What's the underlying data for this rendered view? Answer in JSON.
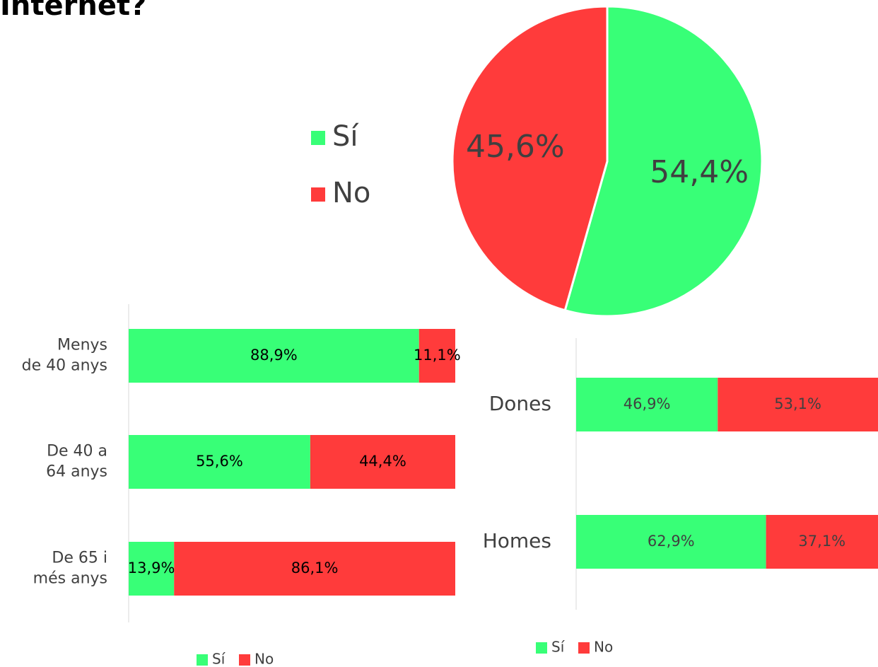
{
  "chart_data": [
    {
      "type": "pie",
      "title": "Internet?",
      "categories": [
        "Sí",
        "No"
      ],
      "values": [
        54.4,
        45.6
      ],
      "value_labels": [
        "54,4%",
        "45,6%"
      ],
      "colors": [
        "#38ff77",
        "#ff3b3b"
      ]
    },
    {
      "type": "stacked_barh",
      "categories": [
        "Menys\nde 40 anys",
        "De 40 a\n64 anys",
        "De 65 i\nmés anys"
      ],
      "xlim": [
        0,
        100
      ],
      "series": [
        {
          "name": "Sí",
          "color": "#38ff77",
          "values": [
            88.9,
            55.6,
            13.9
          ],
          "value_labels": [
            "88,9%",
            "55,6%",
            "13,9%"
          ]
        },
        {
          "name": "No",
          "color": "#ff3b3b",
          "values": [
            11.1,
            44.4,
            86.1
          ],
          "value_labels": [
            "11,1%",
            "44,4%",
            "86,1%"
          ]
        }
      ]
    },
    {
      "type": "stacked_barh",
      "categories": [
        "Dones",
        "Homes"
      ],
      "xlim": [
        0,
        100
      ],
      "series": [
        {
          "name": "Sí",
          "color": "#38ff77",
          "values": [
            46.9,
            62.9
          ],
          "value_labels": [
            "46,9%",
            "62,9%"
          ]
        },
        {
          "name": "No",
          "color": "#ff3b3b",
          "values": [
            53.1,
            37.1
          ],
          "value_labels": [
            "53,1%",
            "37,1%"
          ]
        }
      ]
    }
  ]
}
